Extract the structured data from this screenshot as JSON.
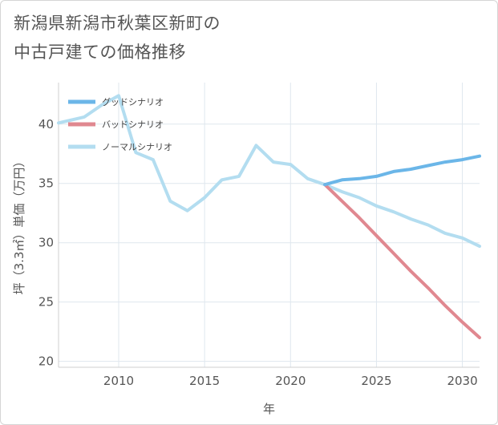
{
  "title": {
    "line1": "新潟県新潟市秋葉区新町の",
    "line2": "中古戸建ての価格推移"
  },
  "chart_data": {
    "type": "line",
    "xlabel": "年",
    "ylabel": "坪（3.3㎡）単価（万円）",
    "xlim": [
      2006.5,
      2031
    ],
    "ylim": [
      19.5,
      43.5
    ],
    "xticks": [
      2010,
      2015,
      2020,
      2025,
      2030
    ],
    "yticks": [
      20,
      25,
      30,
      35,
      40
    ],
    "grid": true,
    "legend_position": "top-left",
    "series": [
      {
        "name": "グッドシナリオ",
        "color": "#6bb6e8",
        "x": [
          2022,
          2023,
          2024,
          2025,
          2026,
          2027,
          2028,
          2029,
          2030,
          2031
        ],
        "y": [
          34.9,
          35.3,
          35.4,
          35.6,
          36.0,
          36.2,
          36.5,
          36.8,
          37.0,
          37.3
        ]
      },
      {
        "name": "バッドシナリオ",
        "color": "#e08890",
        "x": [
          2022,
          2023,
          2024,
          2025,
          2026,
          2027,
          2028,
          2029,
          2030,
          2031
        ],
        "y": [
          34.9,
          33.5,
          32.1,
          30.6,
          29.1,
          27.6,
          26.2,
          24.7,
          23.3,
          22.0
        ]
      },
      {
        "name": "ノーマルシナリオ",
        "color": "#b3ddf0",
        "x": [
          2006.5,
          2008,
          2009,
          2010,
          2011,
          2012,
          2013,
          2014,
          2015,
          2016,
          2017,
          2018,
          2019,
          2020,
          2021,
          2022,
          2023,
          2024,
          2025,
          2026,
          2027,
          2028,
          2029,
          2030,
          2031
        ],
        "y": [
          40.1,
          40.6,
          41.6,
          42.4,
          37.6,
          37.0,
          33.5,
          32.7,
          33.8,
          35.3,
          35.6,
          38.2,
          36.8,
          36.6,
          35.4,
          34.9,
          34.3,
          33.8,
          33.1,
          32.6,
          32.0,
          31.5,
          30.8,
          30.4,
          29.7
        ]
      }
    ]
  }
}
